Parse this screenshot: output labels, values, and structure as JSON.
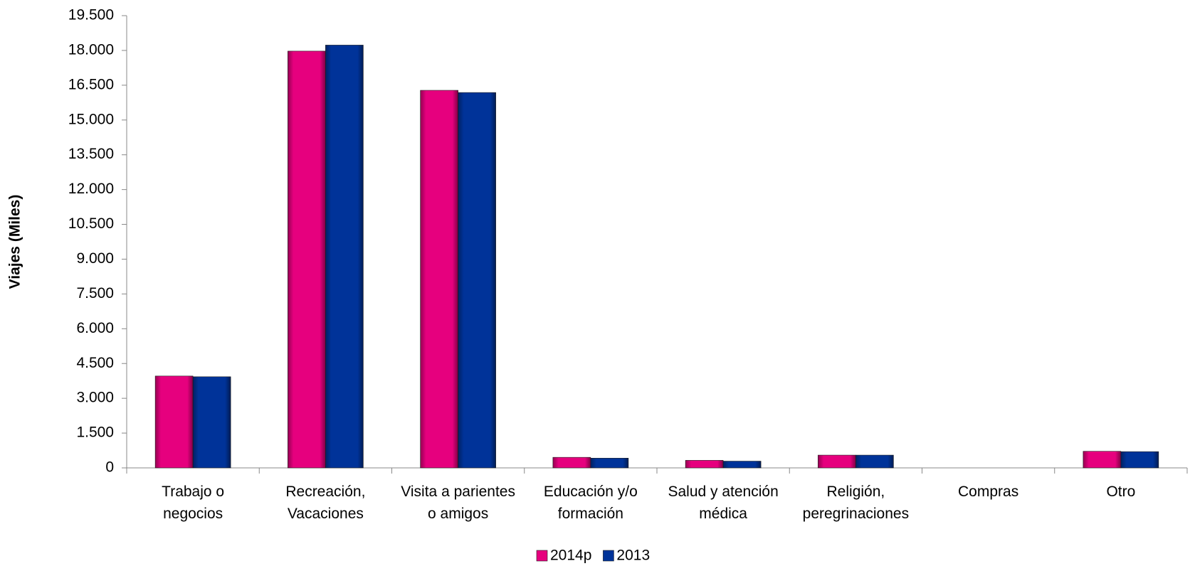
{
  "chart_data": {
    "type": "bar",
    "y_label": "Viajes (Miles)",
    "categories": [
      "Trabajo o\nnegocios",
      "Recreación,\nVacaciones",
      "Visita a parientes\no amigos",
      "Educación y/o\nformación",
      "Salud y atención\nmédica",
      "Religión,\nperegrinaciones",
      "Compras",
      "Otro"
    ],
    "series": [
      {
        "name": "2014p",
        "color": "#e6007e",
        "values": [
          3960,
          17970,
          16280,
          455,
          325,
          550,
          0,
          715
        ]
      },
      {
        "name": "2013",
        "color": "#003399",
        "values": [
          3930,
          18230,
          16185,
          420,
          290,
          550,
          0,
          700
        ]
      }
    ],
    "ylim": [
      0,
      19500
    ],
    "yticks": [
      0,
      {
        "value": 1500,
        "label": "1.500"
      },
      {
        "value": 3000,
        "label": "3.000"
      },
      {
        "value": 4500,
        "label": "4.500"
      },
      {
        "value": 6000,
        "label": "6.000"
      },
      {
        "value": 7500,
        "label": "7.500"
      },
      {
        "value": 9000,
        "label": "9.000"
      },
      {
        "value": 10500,
        "label": "10.500"
      },
      {
        "value": 12000,
        "label": "12.000"
      },
      {
        "value": 13500,
        "label": "13.500"
      },
      {
        "value": 15000,
        "label": "15.000"
      },
      {
        "value": 16500,
        "label": "16.500"
      },
      {
        "value": 18000,
        "label": "18.000"
      },
      {
        "value": 19500,
        "label": "19.500"
      }
    ],
    "legend": "bottom"
  }
}
